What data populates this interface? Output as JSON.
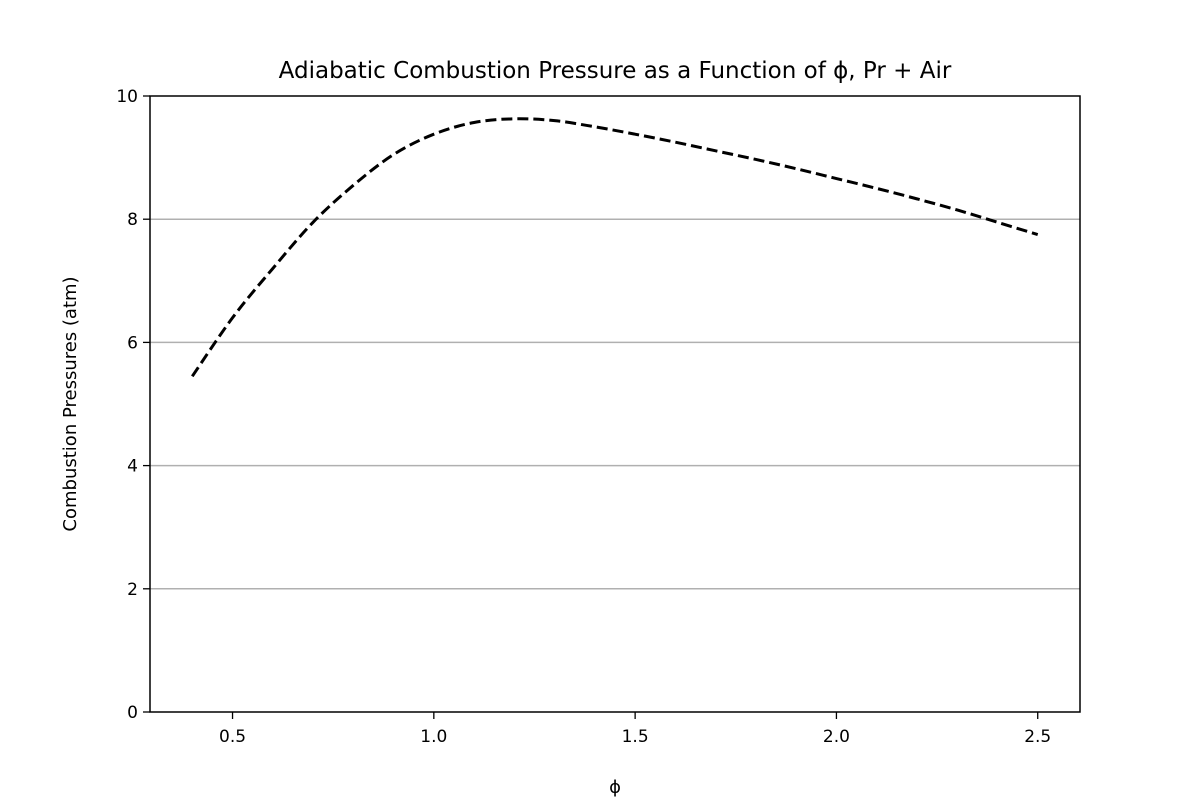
{
  "chart_data": {
    "type": "line",
    "title": "Adiabatic Combustion Pressure as a Function of ϕ, Pr + Air",
    "xlabel": "ϕ",
    "ylabel": "Combustion Pressures (atm)",
    "xlim": [
      0.295,
      2.605
    ],
    "ylim": [
      0,
      10
    ],
    "xticks": [
      0.5,
      1.0,
      1.5,
      2.0,
      2.5
    ],
    "xtick_labels": [
      "0.5",
      "1.0",
      "1.5",
      "2.0",
      "2.5"
    ],
    "yticks": [
      0,
      2,
      4,
      6,
      8,
      10
    ],
    "ytick_labels": [
      "0",
      "2",
      "4",
      "6",
      "8",
      "10"
    ],
    "grid": "y-major",
    "series": [
      {
        "color": "#000000",
        "line_style": "dashed",
        "x": [
          0.4,
          0.5,
          0.6,
          0.7,
          0.8,
          0.9,
          1.0,
          1.1,
          1.2,
          1.3,
          1.4,
          1.5,
          1.6,
          1.7,
          1.8,
          1.9,
          2.0,
          2.1,
          2.2,
          2.3,
          2.4,
          2.5
        ],
        "y": [
          5.45,
          6.4,
          7.2,
          7.95,
          8.55,
          9.05,
          9.38,
          9.57,
          9.63,
          9.6,
          9.5,
          9.38,
          9.25,
          9.11,
          8.97,
          8.82,
          8.66,
          8.5,
          8.33,
          8.15,
          7.95,
          7.75
        ]
      }
    ]
  }
}
